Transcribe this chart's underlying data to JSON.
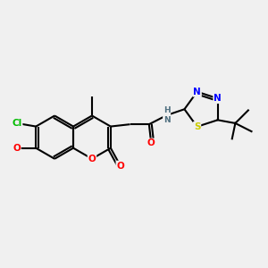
{
  "background_color": "#f0f0f0",
  "atom_colors": {
    "C": "#000000",
    "H": "#507080",
    "N": "#0000ff",
    "O": "#ff0000",
    "S": "#cccc00",
    "Cl": "#00bb00"
  },
  "bond_color": "#000000",
  "bond_width": 1.5,
  "figsize": [
    3.0,
    3.0
  ],
  "dpi": 100
}
